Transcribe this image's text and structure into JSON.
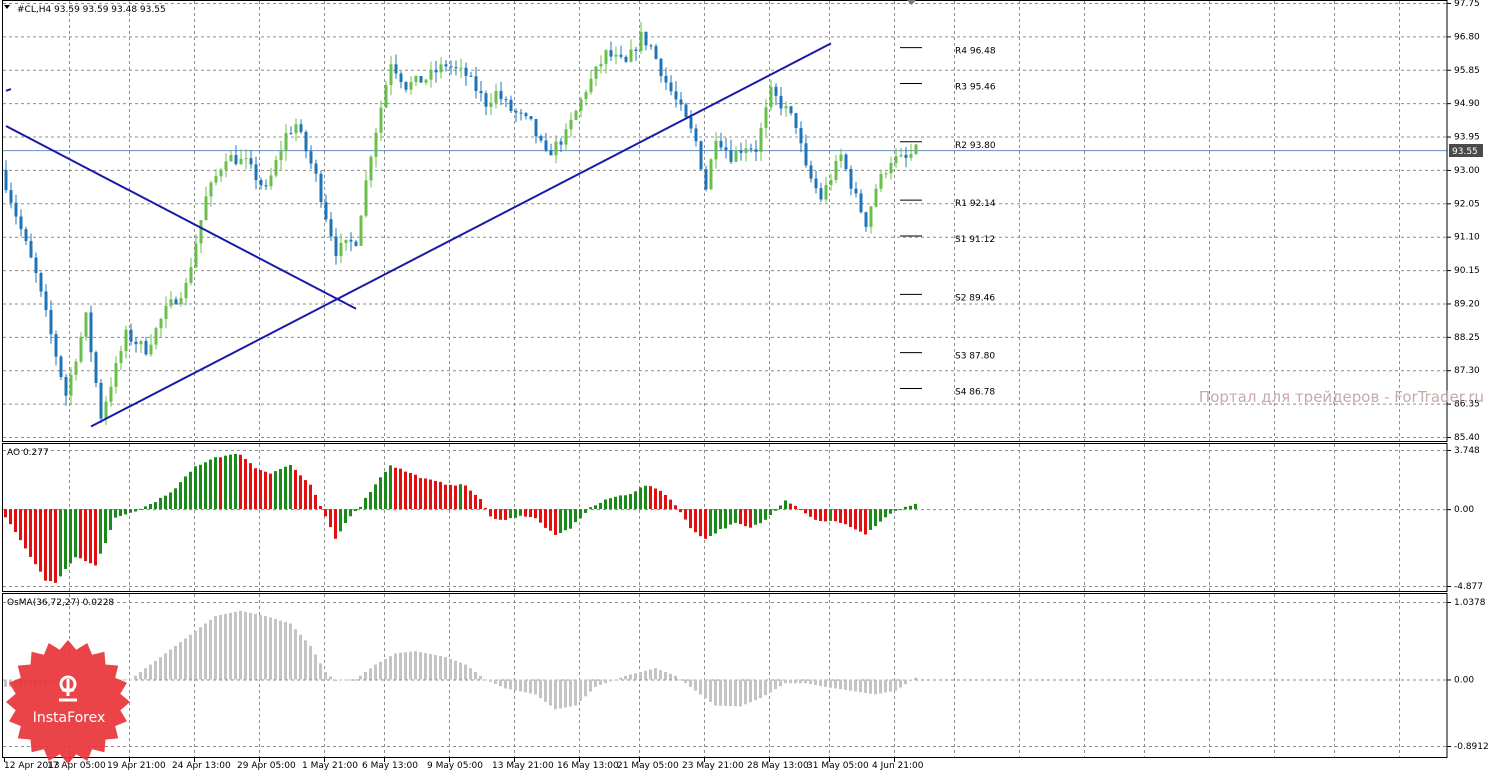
{
  "header": {
    "symbol_line": "#CL,H4  93.59 93.59 93.48 93.55",
    "current_price": "93.55"
  },
  "watermark": "Портал для трейдеров - ForTrader.ru",
  "logo": {
    "text": "InstaForex"
  },
  "colors": {
    "bull_candle": "#6abf4b",
    "bear_candle": "#1f74b8",
    "trendline": "#1a1aaa",
    "price_line": "#6a8fc4",
    "ao_up": "#1a8a1a",
    "ao_down": "#e01010",
    "osma": "#c4c4c4",
    "grid": "#8c8c8c",
    "badge_bg": "#4a4a4a",
    "logo_red": "#e8343a"
  },
  "chart_data": [
    {
      "type": "candlestick",
      "title": "#CL,H4  93.59 93.59 93.48 93.55",
      "ylim": [
        85.4,
        97.75
      ],
      "y_ticks": [
        "97.75",
        "96.80",
        "95.85",
        "94.90",
        "93.95",
        "93.00",
        "92.05",
        "91.10",
        "90.15",
        "89.20",
        "88.25",
        "87.30",
        "86.35",
        "85.40"
      ],
      "x_ticks": [
        "12 Apr 2013",
        "17 Apr 05:00",
        "19 Apr 21:00",
        "24 Apr 13:00",
        "29 Apr 05:00",
        "1 May 21:00",
        "6 May 13:00",
        "9 May 05:00",
        "13 May 21:00",
        "16 May 13:00",
        "21 May 05:00",
        "23 May 21:00",
        "28 May 13:00",
        "31 May 05:00",
        "4 Jun 21:00"
      ],
      "current_price": 93.55,
      "pivot_levels": [
        {
          "label": "R4 96.48",
          "value": 96.48
        },
        {
          "label": "R3 95.46",
          "value": 95.46
        },
        {
          "label": "R2 93.80",
          "value": 93.8
        },
        {
          "label": "R1 92.14",
          "value": 92.14
        },
        {
          "label": "S1 91.12",
          "value": 91.12
        },
        {
          "label": "S2 89.46",
          "value": 89.46
        },
        {
          "label": "S3 87.80",
          "value": 87.8
        },
        {
          "label": "S4 86.78",
          "value": 86.78
        }
      ],
      "close_path": [
        [
          0,
          92.6
        ],
        [
          6,
          90.0
        ],
        [
          9,
          88.3
        ],
        [
          12,
          86.6
        ],
        [
          16,
          88.8
        ],
        [
          19,
          86.0
        ],
        [
          24,
          88.3
        ],
        [
          28,
          87.9
        ],
        [
          32,
          89.0
        ],
        [
          36,
          89.7
        ],
        [
          40,
          92.2
        ],
        [
          44,
          93.4
        ],
        [
          48,
          93.2
        ],
        [
          52,
          92.4
        ],
        [
          56,
          94.0
        ],
        [
          58,
          94.3
        ],
        [
          62,
          92.8
        ],
        [
          64,
          91.7
        ],
        [
          66,
          90.7
        ],
        [
          70,
          91.0
        ],
        [
          73,
          93.5
        ],
        [
          77,
          96.1
        ],
        [
          80,
          95.4
        ],
        [
          84,
          95.6
        ],
        [
          88,
          96.0
        ],
        [
          92,
          95.7
        ],
        [
          96,
          94.9
        ],
        [
          98,
          95.2
        ],
        [
          101,
          94.7
        ],
        [
          105,
          94.3
        ],
        [
          108,
          93.4
        ],
        [
          112,
          94.0
        ],
        [
          116,
          95.3
        ],
        [
          120,
          96.3
        ],
        [
          124,
          96.0
        ],
        [
          127,
          96.8
        ],
        [
          129,
          96.5
        ],
        [
          132,
          95.5
        ],
        [
          135,
          94.7
        ],
        [
          138,
          93.8
        ],
        [
          140,
          92.5
        ],
        [
          142,
          94.0
        ],
        [
          145,
          93.4
        ],
        [
          148,
          93.7
        ],
        [
          150,
          93.6
        ],
        [
          153,
          95.2
        ],
        [
          156,
          94.7
        ],
        [
          158,
          94.3
        ],
        [
          160,
          93.0
        ],
        [
          163,
          92.2
        ],
        [
          165,
          92.8
        ],
        [
          167,
          93.4
        ],
        [
          170,
          92.2
        ],
        [
          172,
          91.5
        ],
        [
          174,
          92.5
        ],
        [
          177,
          93.3
        ],
        [
          180,
          93.3
        ],
        [
          182,
          93.55
        ]
      ],
      "trendlines": [
        {
          "from": [
            0,
            94.25
          ],
          "to": [
            70,
            89.05
          ]
        },
        {
          "from": [
            17,
            85.7
          ],
          "to": [
            165,
            96.6
          ]
        },
        {
          "from": [
            0,
            95.25
          ],
          "to": [
            1,
            95.3
          ]
        }
      ]
    },
    {
      "type": "bar",
      "title": "AO 0.277",
      "ylim": [
        -4.877,
        3.748
      ],
      "y_ticks": [
        "3.748",
        "0.00",
        "-4.877"
      ],
      "current_value": 0.277,
      "value_path": [
        [
          0,
          -0.5
        ],
        [
          4,
          -2.5
        ],
        [
          8,
          -4.5
        ],
        [
          10,
          -4.7
        ],
        [
          14,
          -3.0
        ],
        [
          18,
          -3.6
        ],
        [
          22,
          -0.6
        ],
        [
          27,
          0.0
        ],
        [
          30,
          0.5
        ],
        [
          33,
          1.0
        ],
        [
          38,
          2.7
        ],
        [
          42,
          3.3
        ],
        [
          47,
          3.5
        ],
        [
          50,
          2.6
        ],
        [
          53,
          2.3
        ],
        [
          57,
          2.8
        ],
        [
          61,
          1.5
        ],
        [
          63,
          0.2
        ],
        [
          66,
          -1.9
        ],
        [
          69,
          -0.4
        ],
        [
          71,
          0.2
        ],
        [
          74,
          1.6
        ],
        [
          77,
          2.8
        ],
        [
          80,
          2.4
        ],
        [
          84,
          1.9
        ],
        [
          88,
          1.6
        ],
        [
          92,
          1.5
        ],
        [
          95,
          0.6
        ],
        [
          97,
          -0.5
        ],
        [
          100,
          -0.7
        ],
        [
          103,
          -0.4
        ],
        [
          106,
          -0.6
        ],
        [
          110,
          -1.7
        ],
        [
          113,
          -1.2
        ],
        [
          117,
          0.1
        ],
        [
          121,
          0.7
        ],
        [
          125,
          1.0
        ],
        [
          128,
          1.5
        ],
        [
          131,
          1.2
        ],
        [
          134,
          0.3
        ],
        [
          137,
          -1.2
        ],
        [
          140,
          -1.9
        ],
        [
          143,
          -1.3
        ],
        [
          146,
          -0.9
        ],
        [
          149,
          -1.2
        ],
        [
          152,
          -0.7
        ],
        [
          156,
          0.6
        ],
        [
          159,
          0.0
        ],
        [
          162,
          -0.7
        ],
        [
          166,
          -0.8
        ],
        [
          169,
          -1.1
        ],
        [
          172,
          -1.6
        ],
        [
          175,
          -0.8
        ],
        [
          178,
          -0.1
        ],
        [
          182,
          0.277
        ]
      ]
    },
    {
      "type": "area",
      "title": "OsMA(36,72,27) 0.0228",
      "ylim": [
        -0.8912,
        1.0378
      ],
      "y_ticks": [
        "1.0378",
        "0.00",
        "-0.8912"
      ],
      "current_value": 0.0228,
      "value_path": [
        [
          0,
          -0.1
        ],
        [
          7,
          -0.08
        ],
        [
          10,
          -0.04
        ],
        [
          14,
          0.0
        ],
        [
          19,
          -0.02
        ],
        [
          25,
          0.0
        ],
        [
          31,
          0.3
        ],
        [
          37,
          0.6
        ],
        [
          42,
          0.85
        ],
        [
          47,
          0.92
        ],
        [
          52,
          0.85
        ],
        [
          57,
          0.75
        ],
        [
          61,
          0.45
        ],
        [
          64,
          0.1
        ],
        [
          66,
          -0.02
        ],
        [
          70,
          0.0
        ],
        [
          74,
          0.2
        ],
        [
          78,
          0.35
        ],
        [
          82,
          0.38
        ],
        [
          88,
          0.3
        ],
        [
          92,
          0.2
        ],
        [
          96,
          0.0
        ],
        [
          100,
          -0.12
        ],
        [
          106,
          -0.2
        ],
        [
          110,
          -0.4
        ],
        [
          114,
          -0.35
        ],
        [
          118,
          -0.1
        ],
        [
          124,
          0.05
        ],
        [
          130,
          0.15
        ],
        [
          134,
          0.05
        ],
        [
          138,
          -0.15
        ],
        [
          142,
          -0.35
        ],
        [
          147,
          -0.36
        ],
        [
          151,
          -0.25
        ],
        [
          156,
          -0.05
        ],
        [
          160,
          -0.05
        ],
        [
          164,
          -0.1
        ],
        [
          169,
          -0.15
        ],
        [
          174,
          -0.2
        ],
        [
          178,
          -0.15
        ],
        [
          182,
          0.0228
        ]
      ]
    }
  ]
}
